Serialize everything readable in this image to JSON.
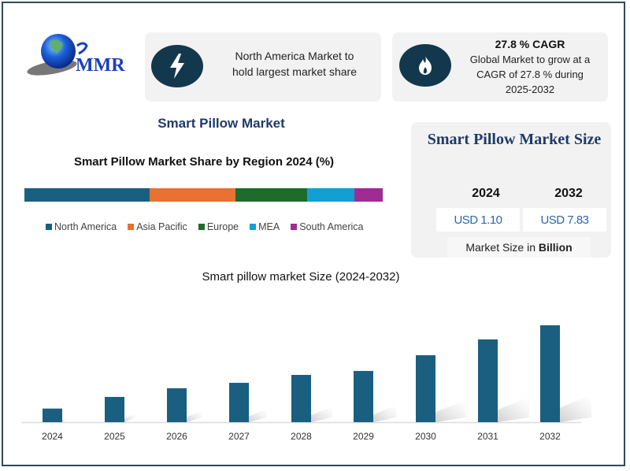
{
  "logo": {
    "text": "MMR",
    "icon": "globe-icon"
  },
  "info_cards": [
    {
      "icon": "lightning-icon",
      "text_line1": "North America Market to",
      "text_line2": "hold largest market share"
    },
    {
      "icon": "flame-icon",
      "heading": "27.8 % CAGR",
      "text_line1": "Global Market to grow at a",
      "text_line2": "CAGR of 27.8 % during",
      "text_line3": "2025-2032"
    }
  ],
  "main_title": "Smart Pillow Market",
  "market_size_card": {
    "title": "Smart Pillow Market Size",
    "year_start": "2024",
    "year_end": "2032",
    "value_start": "USD 1.10",
    "value_end": "USD 7.83",
    "unit_prefix": "Market Size in ",
    "unit_bold": "Billion"
  },
  "colors": {
    "primary": "#1a5f80",
    "navy": "#13384d",
    "title_blue": "#1f3a68"
  },
  "chart_data": [
    {
      "type": "bar",
      "orientation": "horizontal-stacked",
      "title": "Smart Pillow Market Share by Region 2024 (%)",
      "categories": [
        "North America",
        "Asia Pacific",
        "Europe",
        "MEA",
        "South America"
      ],
      "values": [
        35,
        24,
        20,
        13,
        8
      ],
      "colors": [
        "#1a5f80",
        "#e97132",
        "#1e6b2c",
        "#139ed4",
        "#a02b93"
      ],
      "legend": "bottom",
      "xlabel": "",
      "ylabel": ""
    },
    {
      "type": "bar",
      "title": "Smart pillow market Size (2024-2032)",
      "categories": [
        "2024",
        "2025",
        "2026",
        "2027",
        "2028",
        "2029",
        "2030",
        "2031",
        "2032"
      ],
      "values": [
        1.1,
        2.04,
        2.74,
        3.18,
        3.82,
        4.14,
        5.41,
        6.69,
        7.83
      ],
      "units": "USD Billion",
      "xlabel": "",
      "ylabel": "",
      "ylim": [
        0,
        8
      ],
      "grid": false,
      "color": "#1a5f80"
    }
  ]
}
